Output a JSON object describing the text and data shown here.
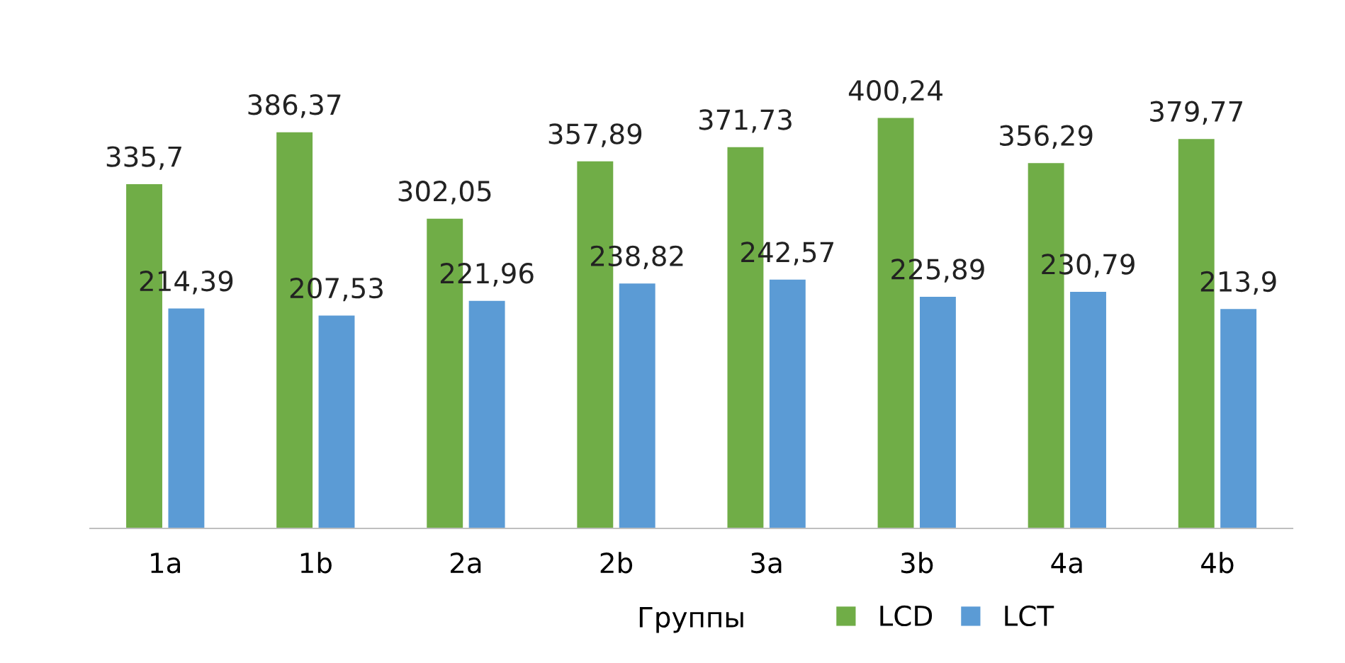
{
  "chart_data": {
    "type": "bar",
    "xlabel": "Группы",
    "categories": [
      "1a",
      "1b",
      "2a",
      "2b",
      "3a",
      "3b",
      "4a",
      "4b"
    ],
    "series": [
      {
        "name": "LCD",
        "color": "#70ad47",
        "values": [
          335.7,
          386.37,
          302.05,
          357.89,
          371.73,
          400.24,
          356.29,
          379.77
        ],
        "value_labels": [
          "335,7",
          "386,37",
          "302,05",
          "357,89",
          "371,73",
          "400,24",
          "356,29",
          "379,77"
        ]
      },
      {
        "name": "LCT",
        "color": "#5b9bd5",
        "values": [
          214.39,
          207.53,
          221.96,
          238.82,
          242.57,
          225.89,
          230.79,
          213.9
        ],
        "value_labels": [
          "214,39",
          "207,53",
          "221,96",
          "238,82",
          "242,57",
          "225,89",
          "230,79",
          "213,9"
        ]
      }
    ],
    "tick_labels": "x",
    "legend": "bottom",
    "grid": false
  }
}
